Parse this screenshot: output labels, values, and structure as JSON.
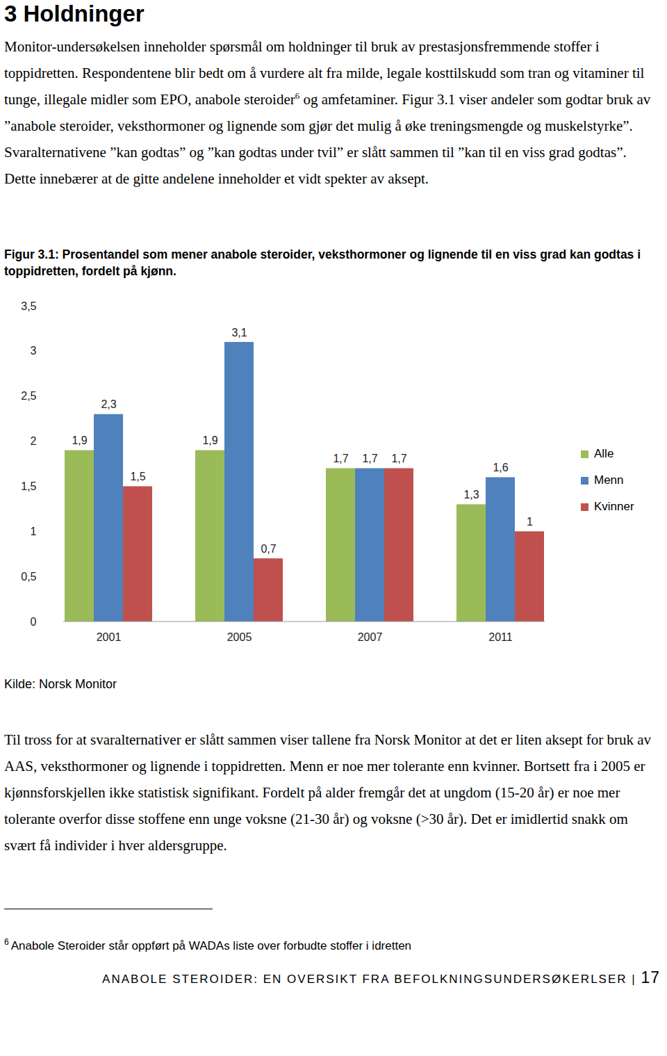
{
  "document": {
    "heading": "3 Holdninger",
    "paragraph_1": {
      "before_footnote": "Monitor-undersøkelsen inneholder spørsmål om holdninger til bruk av prestasjonsfremmende stoffer i toppidretten. Respondentene blir bedt om å vurdere alt fra milde, legale kosttilskudd som tran og vitaminer til tunge, illegale midler som EPO, anabole steroider",
      "footnote_ref": "6",
      "after_footnote": " og amfetaminer. Figur 3.1 viser andeler som godtar bruk av ”anabole steroider, veksthormoner og lignende som gjør det mulig å øke treningsmengde og muskelstyrke”. Svaralternativene ”kan godtas” og ”kan godtas under tvil” er slått sammen til ”kan til en viss grad godtas”. Dette innebærer at de gitte andelene inneholder et vidt spekter av aksept."
    },
    "source": "Kilde: Norsk Monitor",
    "paragraph_2": "Til tross for at svaralternativer er slått sammen viser tallene fra Norsk Monitor at det er liten aksept for bruk av AAS, veksthormoner og lignende i toppidretten. Menn er noe mer tolerante enn kvinner. Bortsett fra i 2005 er kjønnsforskjellen ikke statistisk signifikant. Fordelt på alder fremgår det at ungdom (15-20 år) er noe mer tolerante overfor disse stoffene enn unge voksne (21-30 år) og voksne (>30 år). Det er imidlertid snakk om svært få individer i hver aldersgruppe.",
    "footnote": {
      "number": "6",
      "text": "Anabole Steroider står oppført på WADAs liste over forbudte stoffer i idretten"
    },
    "footer": {
      "text": "ANABOLE STEROIDER: EN OVERSIKT FRA BEFOLKNINGSUNDERSØKERLSER",
      "separator": "|",
      "page_number": "17"
    }
  },
  "chart_data": {
    "type": "bar",
    "title": "Figur 3.1: Prosentandel som mener anabole steroider, veksthormoner og lignende til en viss grad kan godtas i toppidretten, fordelt på kjønn.",
    "categories": [
      "2001",
      "2005",
      "2007",
      "2011"
    ],
    "series": [
      {
        "name": "Alle",
        "color": "#9bbb59",
        "values": [
          1.9,
          1.9,
          1.7,
          1.3
        ],
        "value_labels": [
          "1,9",
          "1,9",
          "1,7",
          "1,3"
        ]
      },
      {
        "name": "Menn",
        "color": "#4f81bd",
        "values": [
          2.3,
          3.1,
          1.7,
          1.6
        ],
        "value_labels": [
          "2,3",
          "3,1",
          "1,7",
          "1,6"
        ]
      },
      {
        "name": "Kvinner",
        "color": "#c0504d",
        "values": [
          1.5,
          0.7,
          1.7,
          1
        ],
        "value_labels": [
          "1,5",
          "0,7",
          "1,7",
          "1"
        ]
      }
    ],
    "ylim": [
      0,
      3.5
    ],
    "yticks": [
      0,
      {
        "value": 0.5,
        "label": "0,5"
      },
      1,
      {
        "value": 1.5,
        "label": "1,5"
      },
      2,
      {
        "value": 2.5,
        "label": "2,5"
      },
      3,
      {
        "value": 3.5,
        "label": "3,5"
      }
    ],
    "grid": false,
    "legend": "right",
    "data_labels": true
  }
}
